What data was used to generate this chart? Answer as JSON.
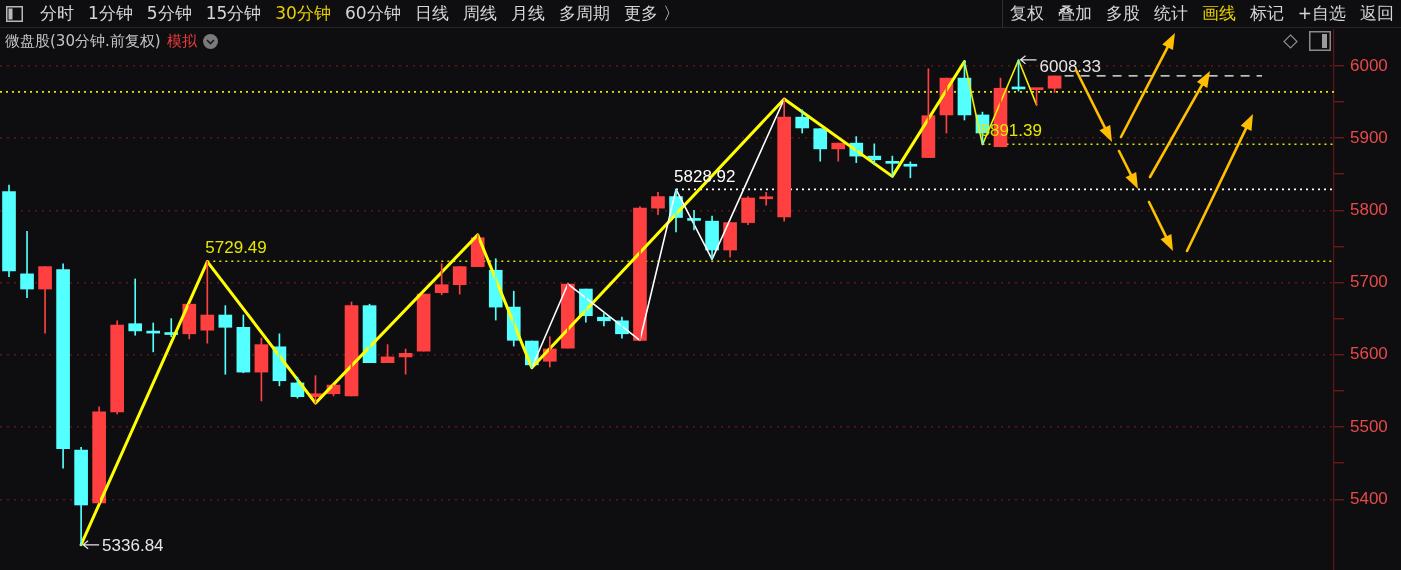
{
  "chart_data": {
    "type": "candlestick",
    "title": "微盘股(30分钟.前复权)",
    "subtitle": "模拟",
    "categories": [
      null,
      null,
      null,
      null,
      null,
      null,
      null,
      null,
      null,
      null,
      null,
      null,
      null,
      null,
      null,
      null,
      null,
      null,
      null,
      null,
      null,
      null,
      null,
      null,
      null,
      null,
      null,
      null,
      null,
      null,
      null,
      null,
      null,
      null,
      null,
      null,
      null,
      null,
      null,
      null,
      null,
      null,
      null,
      null,
      null,
      null,
      null,
      null,
      null,
      null,
      null,
      null,
      null,
      null,
      null,
      null,
      null,
      null,
      null,
      null,
      null,
      null,
      null,
      null,
      null,
      null,
      null,
      null,
      null,
      null,
      null,
      null,
      null,
      null
    ],
    "ohlc": [
      [
        5826,
        5835,
        5708,
        5716
      ],
      [
        5712,
        5771,
        5679,
        5691
      ],
      [
        5691,
        5722,
        5630,
        5722
      ],
      [
        5718,
        5726,
        5443,
        5470
      ],
      [
        5468,
        5472,
        5336.84,
        5392
      ],
      [
        5395,
        5528,
        5395,
        5521
      ],
      [
        5521,
        5647,
        5518,
        5641
      ],
      [
        5643,
        5705,
        5627,
        5633
      ],
      [
        5632,
        5644,
        5604,
        5630
      ],
      [
        5630,
        5650,
        5625,
        5628
      ],
      [
        5629,
        5670,
        5622,
        5670
      ],
      [
        5634,
        5729.49,
        5616,
        5655
      ],
      [
        5655,
        5668,
        5573,
        5638
      ],
      [
        5638,
        5655,
        5575,
        5576
      ],
      [
        5576,
        5623,
        5536,
        5614
      ],
      [
        5611,
        5629,
        5557,
        5564
      ],
      [
        5561,
        5569,
        5540,
        5542
      ],
      [
        5542,
        5571,
        5533,
        5546
      ],
      [
        5546,
        5558,
        5543,
        5558
      ],
      [
        5543,
        5673,
        5543,
        5668
      ],
      [
        5668,
        5670,
        5589,
        5589
      ],
      [
        5589,
        5614,
        5589,
        5597
      ],
      [
        5597,
        5608,
        5573,
        5602
      ],
      [
        5605,
        5684,
        5605,
        5684
      ],
      [
        5686,
        5726,
        5683,
        5697
      ],
      [
        5697,
        5722,
        5684,
        5722
      ],
      [
        5722,
        5766,
        5722,
        5762
      ],
      [
        5717,
        5733,
        5648,
        5666
      ],
      [
        5666,
        5688,
        5612,
        5620
      ],
      [
        5619,
        5619,
        5582,
        5586
      ],
      [
        5591,
        5625,
        5583,
        5608
      ],
      [
        5609,
        5698,
        5609,
        5698
      ],
      [
        5691,
        5691,
        5645,
        5654
      ],
      [
        5652,
        5658,
        5640,
        5647
      ],
      [
        5647,
        5652,
        5623,
        5629
      ],
      [
        5620,
        5805,
        5620,
        5803
      ],
      [
        5803,
        5825,
        5794,
        5819
      ],
      [
        5819,
        5828.92,
        5770,
        5790
      ],
      [
        5788,
        5800,
        5773,
        5786
      ],
      [
        5785,
        5792,
        5732,
        5745
      ],
      [
        5745,
        5783,
        5735,
        5783
      ],
      [
        5783,
        5819,
        5780,
        5817
      ],
      [
        5816,
        5825,
        5807,
        5818
      ],
      [
        5791,
        5954,
        5785,
        5929
      ],
      [
        5929,
        5939,
        5907,
        5914
      ],
      [
        5913,
        5913,
        5868,
        5885
      ],
      [
        5885,
        5893,
        5868,
        5893
      ],
      [
        5893,
        5902,
        5866,
        5875
      ],
      [
        5875,
        5892,
        5863,
        5870
      ],
      [
        5866,
        5875,
        5847,
        5865
      ],
      [
        5863,
        5867,
        5845,
        5861
      ],
      [
        5873,
        5996,
        5873,
        5931
      ],
      [
        5932,
        5983,
        5907,
        5983
      ],
      [
        5983,
        6006,
        5925,
        5932
      ],
      [
        5932,
        5936,
        5891.39,
        5907
      ],
      [
        5888,
        5983,
        5888,
        5969
      ],
      [
        5970,
        6008.33,
        5965,
        5968
      ],
      [
        5967,
        5969,
        5946,
        5969
      ],
      [
        5969,
        5986,
        5963,
        5986
      ],
      null,
      null,
      null,
      null,
      null,
      null,
      null,
      null,
      null,
      null,
      null,
      null,
      null,
      null,
      null
    ],
    "colors": [
      "#54ffff",
      "#54ffff",
      "#ff4040",
      "#54ffff",
      "#54ffff",
      "#ff4040",
      "#ff4040",
      "#54ffff",
      "#54ffff",
      "#54ffff",
      "#ff4040",
      "#ff4040",
      "#54ffff",
      "#54ffff",
      "#ff4040",
      "#54ffff",
      "#54ffff",
      "#ff4040",
      "#ff4040",
      "#ff4040",
      "#54ffff",
      "#ff4040",
      "#ff4040",
      "#ff4040",
      "#ff4040",
      "#ff4040",
      "#ff4040",
      "#54ffff",
      "#54ffff",
      "#54ffff",
      "#ff4040",
      "#ff4040",
      "#54ffff",
      "#54ffff",
      "#54ffff",
      "#ff4040",
      "#ff4040",
      "#54ffff",
      "#54ffff",
      "#54ffff",
      "#ff4040",
      "#ff4040",
      "#ff4040",
      "#ff4040",
      "#54ffff",
      "#54ffff",
      "#ff4040",
      "#54ffff",
      "#54ffff",
      "#54ffff",
      "#54ffff",
      "#ff4040",
      "#ff4040",
      "#54ffff",
      "#54ffff",
      "#ff4040",
      "#54ffff",
      "#ff4040",
      "#ff4040",
      null,
      null,
      null,
      null,
      null,
      null,
      null,
      null,
      null,
      null,
      null,
      null,
      null,
      null,
      null
    ],
    "series": [
      {
        "type": "line",
        "color": "#ffff00",
        "values": [
          null,
          null,
          null,
          null,
          5337,
          null,
          null,
          null,
          null,
          null,
          null,
          5729,
          null,
          null,
          null,
          null,
          null,
          5533,
          null,
          null,
          null,
          null,
          null,
          null,
          null,
          null,
          5766,
          null,
          null,
          5582,
          null,
          null,
          null,
          null,
          null,
          null,
          null,
          null,
          null,
          null,
          null,
          null,
          null,
          5954,
          null,
          null,
          null,
          null,
          null,
          5847,
          null,
          null,
          null,
          6006,
          null,
          null,
          null,
          null,
          null,
          null,
          null,
          null,
          null,
          null,
          null,
          null,
          null,
          null,
          null,
          null,
          null,
          null,
          null,
          null
        ]
      },
      {
        "type": "line",
        "color": "#ffffff",
        "values": [
          null,
          null,
          null,
          null,
          null,
          null,
          null,
          null,
          null,
          null,
          null,
          null,
          null,
          null,
          null,
          null,
          null,
          null,
          null,
          null,
          null,
          null,
          null,
          null,
          null,
          null,
          null,
          null,
          null,
          5582,
          null,
          5698,
          null,
          null,
          null,
          5620,
          null,
          5829,
          null,
          5732,
          null,
          null,
          null,
          5954,
          null,
          null,
          null,
          null,
          null,
          null,
          null,
          null,
          null,
          null,
          null,
          null,
          null,
          null,
          null,
          null,
          null,
          null,
          null,
          null,
          null,
          null,
          null,
          null,
          null,
          null,
          null,
          null,
          null,
          null
        ]
      },
      {
        "type": "line",
        "color": "#f0f000",
        "values": [
          null,
          null,
          null,
          null,
          null,
          null,
          null,
          null,
          null,
          null,
          null,
          null,
          null,
          null,
          null,
          null,
          null,
          null,
          null,
          null,
          null,
          null,
          null,
          null,
          null,
          null,
          null,
          null,
          null,
          null,
          null,
          null,
          null,
          null,
          null,
          null,
          null,
          null,
          null,
          null,
          null,
          null,
          null,
          null,
          null,
          null,
          null,
          null,
          null,
          null,
          null,
          null,
          null,
          6006,
          5891,
          null,
          6008,
          5946,
          null,
          null,
          null,
          null,
          null,
          null,
          null,
          null,
          null,
          null,
          null,
          null,
          null,
          null,
          null,
          null
        ]
      }
    ],
    "ylim": [
      5302,
      6051
    ],
    "yticks": [
      5400,
      {
        "value": 5450,
        "label": null
      },
      5500,
      {
        "value": 5550,
        "label": null
      },
      5600,
      {
        "value": 5650,
        "label": null
      },
      5700,
      {
        "value": 5750,
        "label": null
      },
      5800,
      {
        "value": 5850,
        "label": null
      },
      5900,
      {
        "value": 5950,
        "label": null
      },
      6000
    ],
    "grid": "y",
    "tick_labels": "y",
    "ref_lines": [
      {
        "axis": "y",
        "value": 5964,
        "color": "#e6e600",
        "line_style": "dotted"
      },
      {
        "axis": "y",
        "value": 5891.39,
        "label": "5891.39",
        "color": "#e6e600",
        "line_style": "dotted"
      },
      {
        "axis": "y",
        "value": 5828.92,
        "label": "5828.92",
        "color": "#ffffff",
        "line_style": "dotted"
      },
      {
        "axis": "y",
        "value": 5729.49,
        "label": "5729.49",
        "color": "#e6e600",
        "line_style": "dotted"
      },
      {
        "axis": "y",
        "value": 5986,
        "color": "#ffffff",
        "line_style": "dashed"
      }
    ],
    "annotations": [
      "分时",
      "1分钟",
      "5分钟",
      "15分钟",
      "30分钟",
      "60分钟",
      "日线",
      "周线",
      "月线",
      "多周期",
      "更多 〉",
      "复权",
      "叠加",
      "多股",
      "统计",
      "画线",
      "标记",
      "+自选",
      "返回",
      "6008.33",
      "5336.84"
    ]
  }
}
